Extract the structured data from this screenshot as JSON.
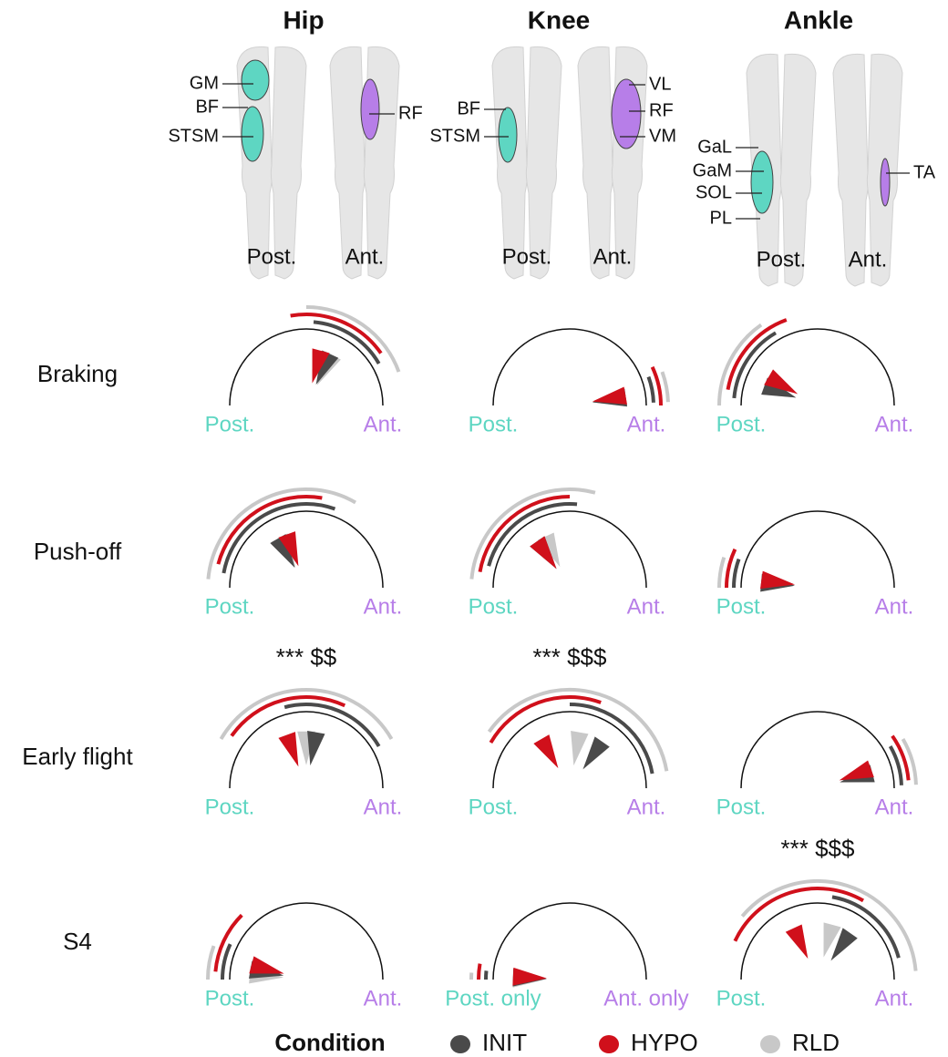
{
  "columns": [
    "Hip",
    "Knee",
    "Ankle"
  ],
  "anatomy": [
    {
      "posterior_label": "Post.",
      "anterior_label": "Ant.",
      "posterior_muscles": [
        "GM",
        "BF",
        "STSM"
      ],
      "anterior_muscles": [
        "RF"
      ]
    },
    {
      "posterior_label": "Post.",
      "anterior_label": "Ant.",
      "posterior_muscles": [
        "BF",
        "STSM"
      ],
      "anterior_muscles": [
        "VL",
        "RF",
        "VM"
      ]
    },
    {
      "posterior_label": "Post.",
      "anterior_label": "Ant.",
      "posterior_muscles": [
        "GaL",
        "GaM",
        "SOL",
        "PL"
      ],
      "anterior_muscles": [
        "TA"
      ]
    }
  ],
  "rows": [
    "Braking",
    "Push-off",
    "Early flight",
    "S4"
  ],
  "post_color": "#5ed6c2",
  "ant_color": "#b77ee8",
  "conditions": [
    {
      "name": "INIT",
      "color": "#4a4a4a"
    },
    {
      "name": "HYPO",
      "color": "#d0101b"
    },
    {
      "name": "RLD",
      "color": "#c8c8c8"
    }
  ],
  "legend_title": "Condition",
  "panels": [
    [
      {
        "left": "Post.",
        "right": "Ant.",
        "means": [
          115,
          105,
          118
        ],
        "ranges": [
          [
            95,
            150
          ],
          [
            80,
            145
          ],
          [
            90,
            160
          ]
        ]
      },
      {
        "left": "Post.",
        "right": "Ant.",
        "means": [
          172,
          170,
          172
        ],
        "ranges": [
          [
            160,
            178
          ],
          [
            155,
            180
          ],
          [
            160,
            178
          ]
        ]
      },
      {
        "left": "Post.",
        "right": "Ant.",
        "means": [
          20,
          30,
          20
        ],
        "ranges": [
          [
            5,
            60
          ],
          [
            10,
            70
          ],
          [
            0,
            55
          ]
        ]
      }
    ],
    [
      {
        "left": "Post.",
        "right": "Ant.",
        "means": [
          60,
          70,
          62
        ],
        "ranges": [
          [
            10,
            110
          ],
          [
            15,
            100
          ],
          [
            5,
            120
          ]
        ]
      },
      {
        "left": "Post.",
        "right": "Ant.",
        "means": [
          55,
          55,
          65
        ],
        "ranges": [
          [
            15,
            95
          ],
          [
            10,
            90
          ],
          [
            5,
            105
          ]
        ]
      },
      {
        "left": "Post.",
        "right": "Ant.",
        "means": [
          5,
          8,
          5
        ],
        "ranges": [
          [
            0,
            20
          ],
          [
            0,
            25
          ],
          [
            0,
            18
          ]
        ]
      }
    ],
    [
      {
        "left": "Post.",
        "right": "Ant.",
        "annotation": "***  $$",
        "means": [
          100,
          70,
          90
        ],
        "ranges": [
          [
            75,
            150
          ],
          [
            35,
            115
          ],
          [
            30,
            150
          ]
        ]
      },
      {
        "left": "Post.",
        "right": "Ant.",
        "annotation": "*** $$$",
        "means": [
          125,
          60,
          100
        ],
        "ranges": [
          [
            90,
            170
          ],
          [
            30,
            110
          ],
          [
            35,
            170
          ]
        ]
      },
      {
        "left": "Post.",
        "right": "Ant.",
        "means": [
          165,
          160,
          165
        ],
        "ranges": [
          [
            150,
            178
          ],
          [
            145,
            175
          ],
          [
            150,
            178
          ]
        ]
      }
    ],
    [
      {
        "left": "Post.",
        "right": "Ant.",
        "means": [
          10,
          15,
          5
        ],
        "ranges": [
          [
            0,
            25
          ],
          [
            5,
            45
          ],
          [
            0,
            20
          ]
        ]
      },
      {
        "left": "Post. only",
        "right": "Ant. only",
        "means": [
          2,
          3,
          1
        ],
        "ranges": [
          [
            0,
            6
          ],
          [
            0,
            10
          ],
          [
            0,
            4
          ]
        ]
      },
      {
        "left": "Post.",
        "right": "Ant.",
        "annotation": "*** $$$",
        "means": [
          125,
          65,
          105
        ],
        "ranges": [
          [
            100,
            165
          ],
          [
            25,
            120
          ],
          [
            40,
            175
          ]
        ]
      }
    ]
  ]
}
